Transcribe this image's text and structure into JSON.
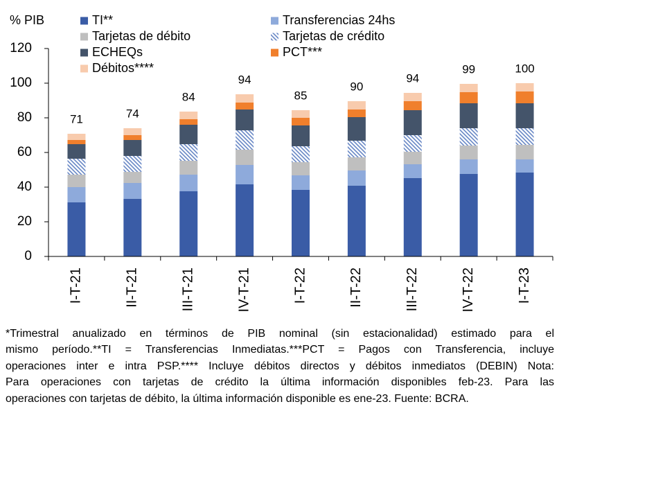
{
  "chart_data": {
    "type": "bar",
    "stacked": true,
    "ylabel": "% PIB",
    "ylim": [
      0,
      120
    ],
    "yticks": [
      0,
      20,
      40,
      60,
      80,
      100,
      120
    ],
    "grid": false,
    "legend": "top",
    "categories": [
      "I-T-21",
      "II-T-21",
      "III-T-21",
      "IV-T-21",
      "I-T-22",
      "II-T-22",
      "III-T-22",
      "IV-T-22",
      "I-T-23"
    ],
    "series": [
      {
        "name": "TI**",
        "color": "#3a5ca6",
        "values": [
          31.2,
          33.2,
          37.6,
          41.6,
          38.4,
          40.8,
          45.2,
          47.6,
          48.4
        ]
      },
      {
        "name": "Transferencias 24hs",
        "color": "#8eaadb",
        "values": [
          8.8,
          9.2,
          9.6,
          11.2,
          8.4,
          8.8,
          8.0,
          8.4,
          7.6
        ]
      },
      {
        "name": "Tarjetas de débito",
        "color": "#bfbfbf",
        "values": [
          7.2,
          6.4,
          8.0,
          8.8,
          7.6,
          7.6,
          7.2,
          8.0,
          8.4
        ]
      },
      {
        "name": "Tarjetas de crédito",
        "color": "#5a7cc0",
        "fill_style": "hatched",
        "values": [
          9.2,
          9.2,
          9.6,
          11.2,
          9.2,
          9.6,
          9.6,
          10.0,
          9.6
        ]
      },
      {
        "name": "ECHEQs",
        "color": "#44546a",
        "values": [
          8.4,
          9.2,
          11.2,
          12.0,
          12.0,
          13.6,
          14.4,
          14.4,
          14.4
        ]
      },
      {
        "name": "PCT***",
        "color": "#f07f2c",
        "values": [
          2.4,
          2.8,
          3.2,
          4.0,
          4.4,
          4.4,
          5.2,
          6.4,
          6.8
        ]
      },
      {
        "name": "Débitos****",
        "color": "#f8cbad",
        "values": [
          3.6,
          4.0,
          4.4,
          4.8,
          4.4,
          4.8,
          4.8,
          4.8,
          4.8
        ]
      }
    ],
    "totals": [
      71,
      74,
      84,
      94,
      85,
      90,
      94,
      99,
      100
    ]
  },
  "footnote_lines": [
    "*Trimestral anualizado en términos de PIB nominal (sin estacionalidad) estimado para el",
    "mismo período.**TI = Transferencias Inmediatas.***PCT = Pagos con Transferencia, incluye",
    "operaciones inter e intra PSP.**** Incluye débitos directos y débitos inmediatos (DEBIN) Nota:",
    "Para operaciones con tarjetas de crédito la última información disponibles feb-23. Para las",
    "operaciones con tarjetas de débito, la última información disponible es ene-23. Fuente: BCRA."
  ]
}
